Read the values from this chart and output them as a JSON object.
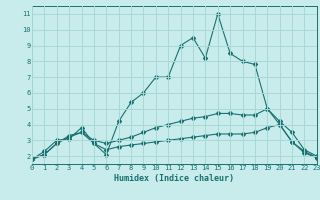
{
  "xlabel": "Humidex (Indice chaleur)",
  "background_color": "#c8ecec",
  "grid_color": "#a8d8d8",
  "line_color": "#1a7070",
  "xlim": [
    0,
    23
  ],
  "ylim": [
    1.5,
    11.5
  ],
  "xticks": [
    0,
    1,
    2,
    3,
    4,
    5,
    6,
    7,
    8,
    9,
    10,
    11,
    12,
    13,
    14,
    15,
    16,
    17,
    18,
    19,
    20,
    21,
    22,
    23
  ],
  "yticks": [
    2,
    3,
    4,
    5,
    6,
    7,
    8,
    9,
    10,
    11
  ],
  "lines": [
    [
      1.8,
      2.3,
      3.0,
      3.1,
      3.8,
      2.8,
      2.1,
      4.2,
      5.4,
      6.0,
      7.0,
      7.0,
      9.0,
      9.5,
      8.2,
      11.0,
      8.5,
      8.0,
      7.8,
      5.0,
      4.0,
      2.9,
      2.3,
      1.9
    ],
    [
      1.8,
      2.1,
      2.8,
      3.3,
      3.5,
      3.0,
      2.8,
      3.0,
      3.2,
      3.5,
      3.8,
      4.0,
      4.2,
      4.4,
      4.5,
      4.7,
      4.7,
      4.6,
      4.6,
      5.0,
      4.2,
      3.5,
      2.4,
      2.0
    ],
    [
      1.8,
      2.1,
      2.8,
      3.2,
      3.5,
      2.8,
      2.4,
      2.6,
      2.7,
      2.8,
      2.9,
      3.0,
      3.1,
      3.2,
      3.3,
      3.4,
      3.4,
      3.4,
      3.5,
      3.8,
      4.0,
      2.9,
      2.2,
      1.9
    ]
  ]
}
